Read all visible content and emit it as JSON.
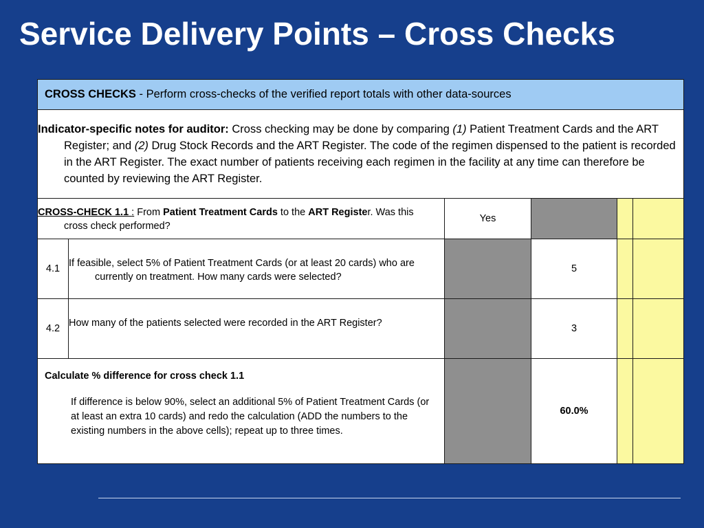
{
  "slide": {
    "title": "Service Delivery Points – Cross Checks"
  },
  "header": {
    "label": "CROSS CHECKS",
    "text": " - Perform cross-checks of the verified report totals with other data-sources"
  },
  "notes": {
    "label": "Indicator-specific notes for auditor:",
    "t1": "  Cross checking may be done by comparing ",
    "m1": "(1)",
    "t2": " Patient Treatment Cards and the ART Register; and ",
    "m2": "(2)",
    "t3": " Drug Stock Records and the ART Register. The code of the regimen dispensed to the patient is recorded in the ART Register. The exact number of patients receiving each regimen in the facility at any time can therefore be counted by reviewing the ART Register."
  },
  "cross_check": {
    "label": "CROSS-CHECK 1.1 ",
    "colon": ":",
    "from": "  From ",
    "source": "Patient Treatment Cards",
    "to": " to the ",
    "target_a": "ART Registe",
    "target_b": "r. Was this cross check performed?",
    "answer": "Yes"
  },
  "rows": [
    {
      "num": "4.1",
      "question": "If feasible, select 5% of Patient Treatment Cards (or at least 20 cards) who are currently on treatment. How many cards were selected?",
      "value": "5"
    },
    {
      "num": "4.2",
      "question": "How many of the patients selected were recorded in the ART Register?",
      "value": "3"
    }
  ],
  "calc": {
    "label": "Calculate % difference for cross check 1.1",
    "body": "If difference is below 90%, select an additional 5% of Patient Treatment Cards (or at least an extra 10 cards) and redo the calculation (ADD the numbers to the existing numbers in the above cells); repeat up to three times.",
    "value": "60.0%"
  },
  "colors": {
    "background": "#163f8c",
    "header_fill": "#9fcbf3",
    "gray_fill": "#8f8f8f",
    "yellow_fill": "#fbf9a0"
  }
}
